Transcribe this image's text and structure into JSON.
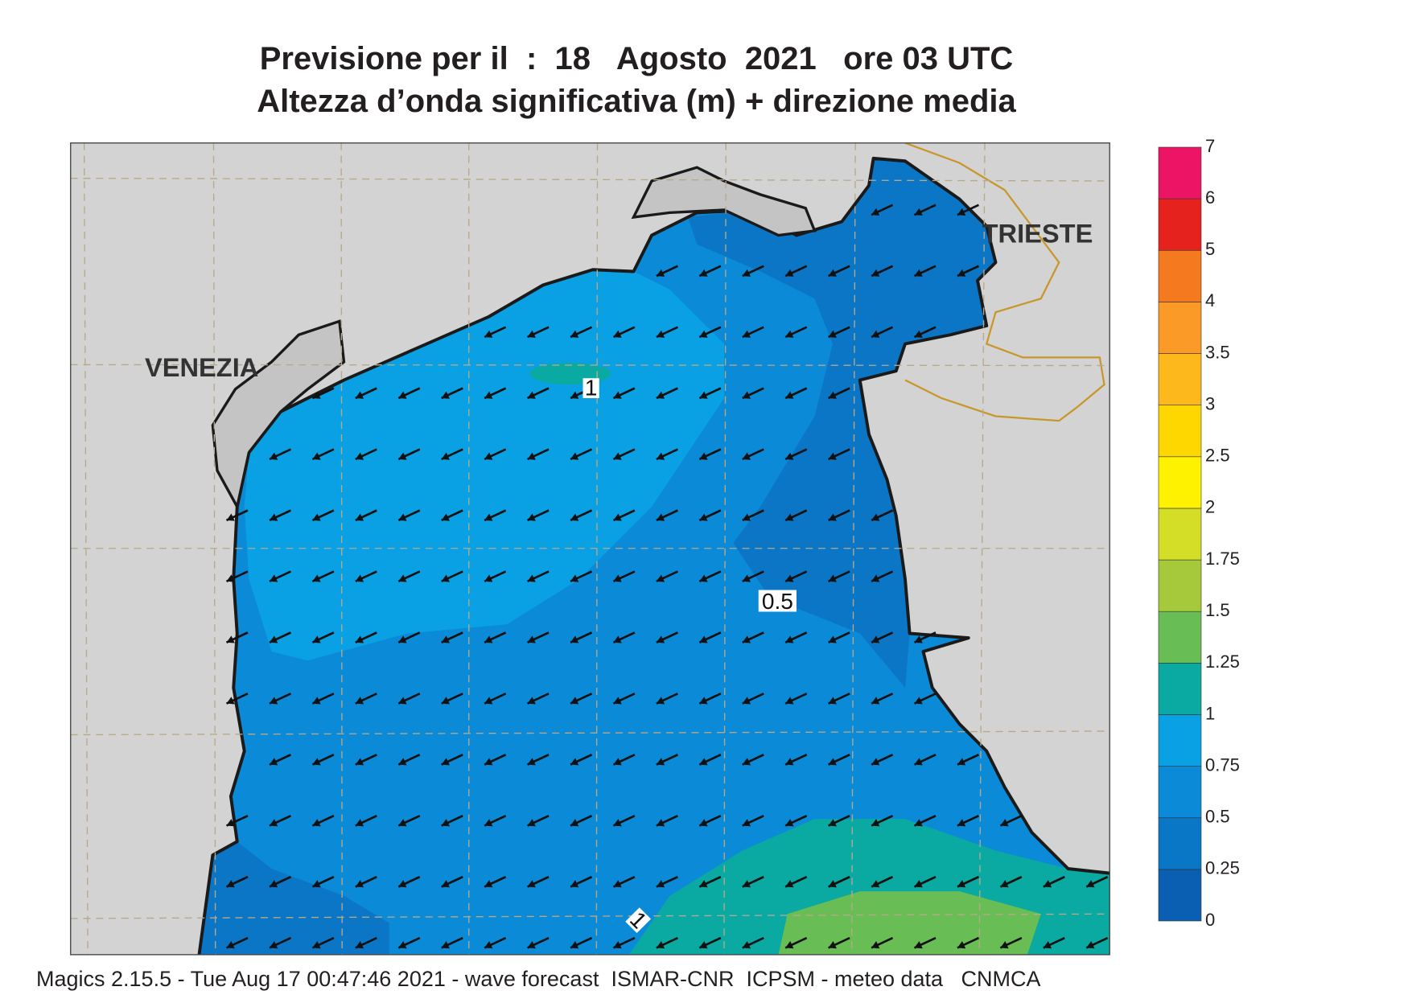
{
  "header": {
    "title_line1": "Previsione per il  :  18   Agosto  2021   ore 03 UTC",
    "title_line2": "Altezza d’onda significativa (m) + direzione media"
  },
  "map": {
    "cities": [
      "VENEZIA",
      "TRIESTE"
    ],
    "contour_labels": [
      "1",
      "0.5",
      "1"
    ]
  },
  "legend": {
    "levels": [
      0,
      0.25,
      0.5,
      0.75,
      1,
      1.25,
      1.5,
      1.75,
      2,
      2.5,
      3,
      3.5,
      4,
      5,
      6,
      7
    ],
    "colors": [
      "#0b5fb3",
      "#0a76c6",
      "#0b8ad7",
      "#0aa0e4",
      "#0aa9a2",
      "#68be55",
      "#a6c93b",
      "#d4de27",
      "#fff200",
      "#ffd700",
      "#fdb81c",
      "#fb9a26",
      "#f4791f",
      "#e6221f",
      "#ec1465"
    ]
  },
  "footer": "Magics 2.15.5 - Tue Aug 17 00:47:46 2021 - wave forecast  ISMAR-CNR  ICPSM - meteo data   CNMCA"
}
